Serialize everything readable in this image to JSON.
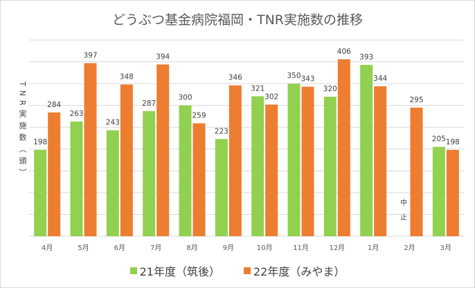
{
  "chart_data": {
    "type": "bar",
    "title": "どうぶつ基金病院福岡・TNR実施数の推移",
    "xlabel": "",
    "ylabel": "TNR実施数（頭）",
    "ylim": [
      0,
      450
    ],
    "grid": true,
    "legend_position": "bottom",
    "categories": [
      "4月",
      "5月",
      "6月",
      "7月",
      "8月",
      "9月",
      "10月",
      "11月",
      "12月",
      "1月",
      "2月",
      "3月"
    ],
    "series": [
      {
        "name": "21年度（筑後）",
        "color": "#92d050",
        "values": [
          198,
          263,
          243,
          287,
          300,
          223,
          321,
          350,
          320,
          393,
          null,
          205
        ]
      },
      {
        "name": "22年度（みやま）",
        "color": "#ed7d31",
        "values": [
          284,
          397,
          348,
          394,
          259,
          346,
          302,
          343,
          406,
          344,
          295,
          198
        ]
      }
    ],
    "annotations": [
      {
        "category": "2月",
        "series": "21年度（筑後）",
        "text": "中止"
      }
    ]
  }
}
